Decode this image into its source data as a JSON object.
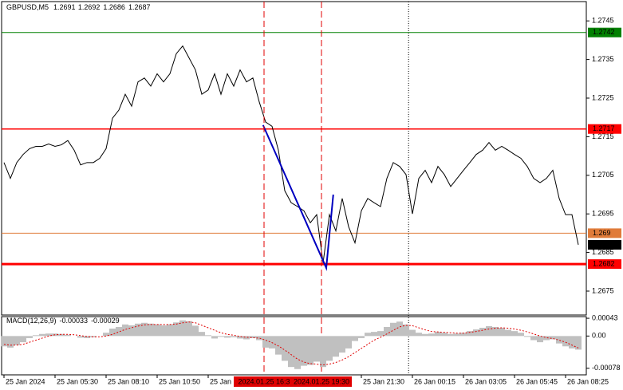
{
  "chart_data": [
    {
      "type": "line",
      "title": "GBPUSD,M5",
      "ohlc": [
        1.2691,
        1.2692,
        1.2686,
        1.2687
      ],
      "color": "#000000",
      "values": [
        1.27083,
        1.27042,
        1.27083,
        1.27104,
        1.27119,
        1.27125,
        1.27125,
        1.27131,
        1.27125,
        1.27129,
        1.2714,
        1.27115,
        1.27077,
        1.27083,
        1.27083,
        1.27094,
        1.27119,
        1.27198,
        1.27219,
        1.2726,
        1.27229,
        1.27292,
        1.27302,
        1.27281,
        1.27313,
        1.27292,
        1.27313,
        1.27365,
        1.27385,
        1.27354,
        1.27323,
        1.2726,
        1.27271,
        1.27313,
        1.2726,
        1.27313,
        1.27281,
        1.27323,
        1.27292,
        1.27302,
        1.2724,
        1.27188,
        1.27177,
        1.27115,
        1.2701,
        1.26979,
        1.26969,
        1.26958,
        1.26927,
        1.26948,
        1.26823,
        1.26948,
        1.26906,
        1.2699,
        1.26917,
        1.26875,
        1.26958,
        1.2699,
        1.26979,
        1.26969,
        1.27042,
        1.27083,
        1.27073,
        1.27052,
        1.2695,
        1.27042,
        1.27063,
        1.27031,
        1.27073,
        1.27052,
        1.27021,
        1.27042,
        1.27063,
        1.27083,
        1.27104,
        1.27115,
        1.27135,
        1.27115,
        1.27125,
        1.27115,
        1.27104,
        1.27094,
        1.27073,
        1.27042,
        1.27031,
        1.27042,
        1.27063,
        1.2699,
        1.26948,
        1.26948,
        1.2687
      ],
      "xlim": [
        -0.375,
        91.25
      ],
      "ylim": [
        1.26688,
        1.275
      ],
      "yticks": [
        1.2745,
        1.2735,
        1.2725,
        1.2715,
        1.2705,
        1.2695,
        1.2685,
        1.2675
      ],
      "xticks": [
        {
          "value": 0,
          "label": "25 Jan 2024"
        },
        {
          "value": 8,
          "label": "25 Jan 05:30"
        },
        {
          "value": 16,
          "label": "25 Jan 08:10"
        },
        {
          "value": 24,
          "label": "25 Jan 10:50"
        },
        {
          "value": 32,
          "label": "25 Jan 1"
        },
        {
          "value": 56,
          "label": "25 Jan 21:30"
        },
        {
          "value": 64,
          "label": "26 Jan 00:15"
        },
        {
          "value": 72,
          "label": "26 Jan 03:05"
        },
        {
          "value": 80,
          "label": "26 Jan 05:45"
        },
        {
          "value": 88,
          "label": "26 Jan 08:25"
        }
      ],
      "hlines": [
        {
          "value": 1.2742,
          "color": "#008000",
          "width": 1
        },
        {
          "value": 1.2717,
          "color": "#ff0000",
          "width": 1.5
        },
        {
          "value": 1.269,
          "color": "#e07b39",
          "width": 1
        },
        {
          "value": 1.2682,
          "color": "#ff0000",
          "width": 3
        }
      ],
      "current_price": 1.2687,
      "vlines": [
        {
          "value": 40.75,
          "label": "2024.01.25 16:3",
          "color": "#e00000"
        },
        {
          "value": 49.75,
          "label": "2024.01.25 19:30",
          "color": "#e00000"
        },
        {
          "value": 63.4,
          "color": "#000000"
        }
      ],
      "trendline": {
        "color": "#0000c0",
        "x": [
          40.6,
          50.5,
          51.6
        ],
        "values": [
          1.2718,
          1.2681,
          1.27
        ]
      }
    },
    {
      "type": "macd",
      "title": "MACD(12,26,9)",
      "readout": [
        -0.00033,
        -0.00029
      ],
      "ylim": [
        -0.00094,
        0.00047
      ],
      "yticks": [
        0.00043,
        {
          "value": 0,
          "label": "0.00"
        },
        -0.00078
      ],
      "histogram": {
        "color": "#c0c0c0",
        "values": [
          -0.00025,
          -0.00028,
          -0.00022,
          -0.00015,
          -5e-05,
          2e-05,
          5e-05,
          6e-05,
          6e-05,
          5e-05,
          3e-05,
          0,
          -4e-05,
          -5e-05,
          -3e-05,
          0,
          8e-05,
          0.00018,
          0.00022,
          0.00028,
          0.00026,
          0.0003,
          0.00032,
          0.0003,
          0.00028,
          0.00026,
          0.00028,
          0.00033,
          0.00038,
          0.00036,
          0.00025,
          0.0001,
          2e-05,
          -6e-05,
          -2e-05,
          -4e-05,
          -3e-05,
          -6e-05,
          -8e-05,
          -5e-05,
          -0.0001,
          -0.00028,
          -0.0003,
          -0.00045,
          -0.0006,
          -0.00075,
          -0.0008,
          -0.00072,
          -0.0007,
          -0.00062,
          -0.00075,
          -0.0006,
          -0.0005,
          -0.0004,
          -0.0003,
          -0.00012,
          -5e-05,
          8e-05,
          0.0001,
          0.00012,
          0.00022,
          0.00032,
          0.00035,
          0.00028,
          0.00015,
          8e-05,
          5e-05,
          6e-05,
          0.0001,
          8e-05,
          5e-05,
          6e-05,
          8e-05,
          0.00012,
          0.00016,
          0.0002,
          0.00024,
          0.00022,
          0.0002,
          0.00015,
          0.00012,
          8e-05,
          -2e-05,
          -0.0001,
          -0.00015,
          -0.0001,
          -8e-05,
          -0.00018,
          -0.00025,
          -0.0003,
          -0.00033
        ]
      },
      "signal": {
        "color": "#e00000",
        "values": [
          -0.0002,
          -0.00022,
          -0.00022,
          -0.0002,
          -0.00015,
          -0.0001,
          -5e-05,
          0,
          3e-05,
          4e-05,
          4e-05,
          3e-05,
          1e-05,
          -1e-05,
          -2e-05,
          -2e-05,
          0,
          4e-05,
          0.0001,
          0.00016,
          0.0002,
          0.00024,
          0.00027,
          0.00028,
          0.00028,
          0.00028,
          0.00028,
          0.00029,
          0.00032,
          0.00034,
          0.00032,
          0.00026,
          0.0002,
          0.00014,
          8e-05,
          4e-05,
          2e-05,
          -1e-05,
          -3e-05,
          -4e-05,
          -5e-05,
          -0.0001,
          -0.00016,
          -0.00024,
          -0.00034,
          -0.00045,
          -0.00056,
          -0.00063,
          -0.00067,
          -0.00068,
          -0.0007,
          -0.00068,
          -0.00064,
          -0.00058,
          -0.0005,
          -0.0004,
          -0.0003,
          -0.0002,
          -0.0001,
          -3e-05,
          5e-05,
          0.00014,
          0.00022,
          0.00026,
          0.00025,
          0.0002,
          0.00015,
          0.00011,
          0.0001,
          9e-05,
          8e-05,
          7e-05,
          7e-05,
          9e-05,
          0.00011,
          0.00014,
          0.00017,
          0.00019,
          0.0002,
          0.00019,
          0.00017,
          0.00014,
          0.0001,
          5e-05,
          0,
          -4e-05,
          -6e-05,
          -0.0001,
          -0.00015,
          -0.00022,
          -0.00029
        ]
      }
    }
  ]
}
